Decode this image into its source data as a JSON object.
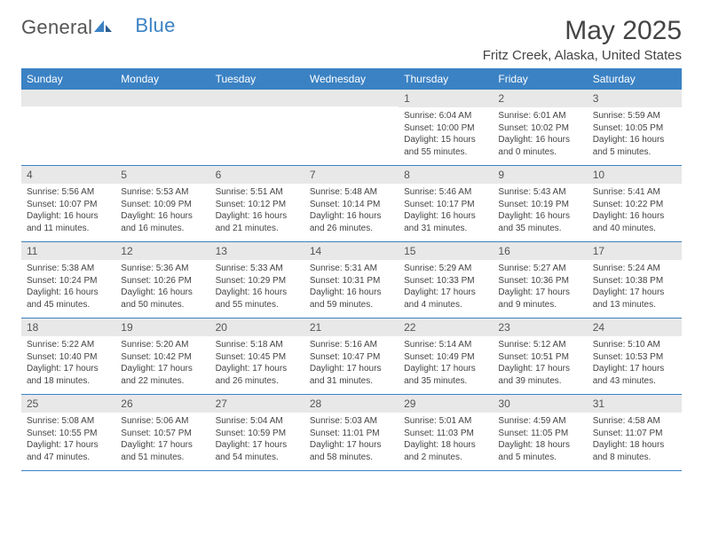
{
  "logo": {
    "part1": "General",
    "part2": "Blue"
  },
  "title": "May 2025",
  "location": "Fritz Creek, Alaska, United States",
  "colors": {
    "header_bg": "#3b82c4",
    "header_text": "#ffffff",
    "daynum_bg": "#e8e8e8",
    "page_bg": "#ffffff",
    "text": "#444444",
    "cell_border": "#3b82c4"
  },
  "weekdays": [
    "Sunday",
    "Monday",
    "Tuesday",
    "Wednesday",
    "Thursday",
    "Friday",
    "Saturday"
  ],
  "weeks": [
    [
      {
        "day": "",
        "lines": []
      },
      {
        "day": "",
        "lines": []
      },
      {
        "day": "",
        "lines": []
      },
      {
        "day": "",
        "lines": []
      },
      {
        "day": "1",
        "lines": [
          "Sunrise: 6:04 AM",
          "Sunset: 10:00 PM",
          "Daylight: 15 hours",
          "and 55 minutes."
        ]
      },
      {
        "day": "2",
        "lines": [
          "Sunrise: 6:01 AM",
          "Sunset: 10:02 PM",
          "Daylight: 16 hours",
          "and 0 minutes."
        ]
      },
      {
        "day": "3",
        "lines": [
          "Sunrise: 5:59 AM",
          "Sunset: 10:05 PM",
          "Daylight: 16 hours",
          "and 5 minutes."
        ]
      }
    ],
    [
      {
        "day": "4",
        "lines": [
          "Sunrise: 5:56 AM",
          "Sunset: 10:07 PM",
          "Daylight: 16 hours",
          "and 11 minutes."
        ]
      },
      {
        "day": "5",
        "lines": [
          "Sunrise: 5:53 AM",
          "Sunset: 10:09 PM",
          "Daylight: 16 hours",
          "and 16 minutes."
        ]
      },
      {
        "day": "6",
        "lines": [
          "Sunrise: 5:51 AM",
          "Sunset: 10:12 PM",
          "Daylight: 16 hours",
          "and 21 minutes."
        ]
      },
      {
        "day": "7",
        "lines": [
          "Sunrise: 5:48 AM",
          "Sunset: 10:14 PM",
          "Daylight: 16 hours",
          "and 26 minutes."
        ]
      },
      {
        "day": "8",
        "lines": [
          "Sunrise: 5:46 AM",
          "Sunset: 10:17 PM",
          "Daylight: 16 hours",
          "and 31 minutes."
        ]
      },
      {
        "day": "9",
        "lines": [
          "Sunrise: 5:43 AM",
          "Sunset: 10:19 PM",
          "Daylight: 16 hours",
          "and 35 minutes."
        ]
      },
      {
        "day": "10",
        "lines": [
          "Sunrise: 5:41 AM",
          "Sunset: 10:22 PM",
          "Daylight: 16 hours",
          "and 40 minutes."
        ]
      }
    ],
    [
      {
        "day": "11",
        "lines": [
          "Sunrise: 5:38 AM",
          "Sunset: 10:24 PM",
          "Daylight: 16 hours",
          "and 45 minutes."
        ]
      },
      {
        "day": "12",
        "lines": [
          "Sunrise: 5:36 AM",
          "Sunset: 10:26 PM",
          "Daylight: 16 hours",
          "and 50 minutes."
        ]
      },
      {
        "day": "13",
        "lines": [
          "Sunrise: 5:33 AM",
          "Sunset: 10:29 PM",
          "Daylight: 16 hours",
          "and 55 minutes."
        ]
      },
      {
        "day": "14",
        "lines": [
          "Sunrise: 5:31 AM",
          "Sunset: 10:31 PM",
          "Daylight: 16 hours",
          "and 59 minutes."
        ]
      },
      {
        "day": "15",
        "lines": [
          "Sunrise: 5:29 AM",
          "Sunset: 10:33 PM",
          "Daylight: 17 hours",
          "and 4 minutes."
        ]
      },
      {
        "day": "16",
        "lines": [
          "Sunrise: 5:27 AM",
          "Sunset: 10:36 PM",
          "Daylight: 17 hours",
          "and 9 minutes."
        ]
      },
      {
        "day": "17",
        "lines": [
          "Sunrise: 5:24 AM",
          "Sunset: 10:38 PM",
          "Daylight: 17 hours",
          "and 13 minutes."
        ]
      }
    ],
    [
      {
        "day": "18",
        "lines": [
          "Sunrise: 5:22 AM",
          "Sunset: 10:40 PM",
          "Daylight: 17 hours",
          "and 18 minutes."
        ]
      },
      {
        "day": "19",
        "lines": [
          "Sunrise: 5:20 AM",
          "Sunset: 10:42 PM",
          "Daylight: 17 hours",
          "and 22 minutes."
        ]
      },
      {
        "day": "20",
        "lines": [
          "Sunrise: 5:18 AM",
          "Sunset: 10:45 PM",
          "Daylight: 17 hours",
          "and 26 minutes."
        ]
      },
      {
        "day": "21",
        "lines": [
          "Sunrise: 5:16 AM",
          "Sunset: 10:47 PM",
          "Daylight: 17 hours",
          "and 31 minutes."
        ]
      },
      {
        "day": "22",
        "lines": [
          "Sunrise: 5:14 AM",
          "Sunset: 10:49 PM",
          "Daylight: 17 hours",
          "and 35 minutes."
        ]
      },
      {
        "day": "23",
        "lines": [
          "Sunrise: 5:12 AM",
          "Sunset: 10:51 PM",
          "Daylight: 17 hours",
          "and 39 minutes."
        ]
      },
      {
        "day": "24",
        "lines": [
          "Sunrise: 5:10 AM",
          "Sunset: 10:53 PM",
          "Daylight: 17 hours",
          "and 43 minutes."
        ]
      }
    ],
    [
      {
        "day": "25",
        "lines": [
          "Sunrise: 5:08 AM",
          "Sunset: 10:55 PM",
          "Daylight: 17 hours",
          "and 47 minutes."
        ]
      },
      {
        "day": "26",
        "lines": [
          "Sunrise: 5:06 AM",
          "Sunset: 10:57 PM",
          "Daylight: 17 hours",
          "and 51 minutes."
        ]
      },
      {
        "day": "27",
        "lines": [
          "Sunrise: 5:04 AM",
          "Sunset: 10:59 PM",
          "Daylight: 17 hours",
          "and 54 minutes."
        ]
      },
      {
        "day": "28",
        "lines": [
          "Sunrise: 5:03 AM",
          "Sunset: 11:01 PM",
          "Daylight: 17 hours",
          "and 58 minutes."
        ]
      },
      {
        "day": "29",
        "lines": [
          "Sunrise: 5:01 AM",
          "Sunset: 11:03 PM",
          "Daylight: 18 hours",
          "and 2 minutes."
        ]
      },
      {
        "day": "30",
        "lines": [
          "Sunrise: 4:59 AM",
          "Sunset: 11:05 PM",
          "Daylight: 18 hours",
          "and 5 minutes."
        ]
      },
      {
        "day": "31",
        "lines": [
          "Sunrise: 4:58 AM",
          "Sunset: 11:07 PM",
          "Daylight: 18 hours",
          "and 8 minutes."
        ]
      }
    ]
  ]
}
